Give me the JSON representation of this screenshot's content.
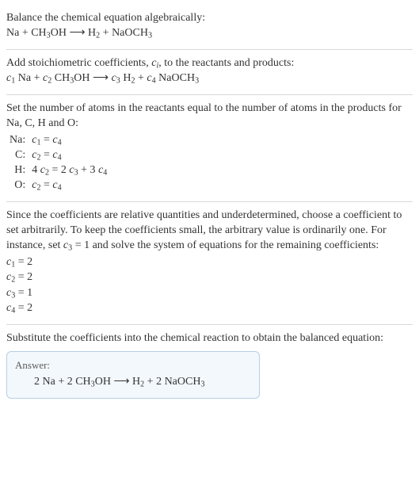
{
  "section1": {
    "line1": "Balance the chemical equation algebraically:",
    "eq_left1": "Na + CH",
    "eq_sub1": "3",
    "eq_mid1": "OH  ⟶  H",
    "eq_sub2": "2",
    "eq_mid2": " + NaOCH",
    "eq_sub3": "3"
  },
  "section2": {
    "line1_a": "Add stoichiometric coefficients, ",
    "ci_c": "c",
    "ci_i": "i",
    "line1_b": ", to the reactants and products:",
    "c1c": "c",
    "c1n": "1",
    "sp1": " Na + ",
    "c2c": "c",
    "c2n": "2",
    "sp2": " CH",
    "s3": "3",
    "sp2b": "OH  ⟶  ",
    "c3c": "c",
    "c3n": "3",
    "sp3": " H",
    "s2": "2",
    "sp3b": " + ",
    "c4c": "c",
    "c4n": "4",
    "sp4": " NaOCH",
    "s3b": "3"
  },
  "section3": {
    "line1": "Set the number of atoms in the reactants equal to the number of atoms in the products for Na, C, H and O:",
    "rows": [
      {
        "lbl": "Na:",
        "c1c": "c",
        "c1n": "1",
        "mid": " = ",
        "c2c": "c",
        "c2n": "4",
        "tail": ""
      },
      {
        "lbl": "C:",
        "c1c": "c",
        "c1n": "2",
        "mid": " = ",
        "c2c": "c",
        "c2n": "4",
        "tail": ""
      },
      {
        "lbl": "H:",
        "pre": "4 ",
        "c1c": "c",
        "c1n": "2",
        "mid": " = 2 ",
        "c2c": "c",
        "c2n": "3",
        "mid2": " + 3 ",
        "c3c": "c",
        "c3n": "4"
      },
      {
        "lbl": "O:",
        "c1c": "c",
        "c1n": "2",
        "mid": " = ",
        "c2c": "c",
        "c2n": "4",
        "tail": ""
      }
    ]
  },
  "section4": {
    "t1": "Since the coefficients are relative quantities and underdetermined, choose a coefficient to set arbitrarily. To keep the coefficients small, the arbitrary value is ordinarily one. For instance, set ",
    "cc": "c",
    "cn": "3",
    "t2": " = 1 and solve the system of equations for the remaining coefficients:",
    "l1a": "c",
    "l1n": "1",
    "l1b": " = 2",
    "l2a": "c",
    "l2n": "2",
    "l2b": " = 2",
    "l3a": "c",
    "l3n": "3",
    "l3b": " = 1",
    "l4a": "c",
    "l4n": "4",
    "l4b": " = 2"
  },
  "section5": {
    "t": "Substitute the coefficients into the chemical reaction to obtain the balanced equation:",
    "answer_label": "Answer:",
    "eq_a": "2 Na + 2 CH",
    "s3": "3",
    "eq_b": "OH  ⟶  H",
    "s2": "2",
    "eq_c": " + 2 NaOCH",
    "s3b": "3"
  }
}
